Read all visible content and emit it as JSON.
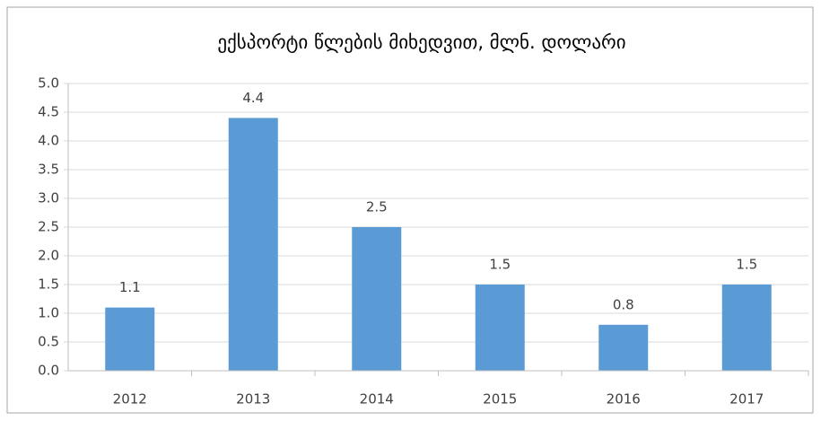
{
  "chart_data": {
    "type": "bar",
    "title": "ექსპორტი წლების მიხედვით, მლნ. დოლარი",
    "categories": [
      "2012",
      "2013",
      "2014",
      "2015",
      "2016",
      "2017"
    ],
    "values": [
      1.1,
      4.4,
      2.5,
      1.5,
      0.8,
      1.5
    ],
    "color": "#5b9bd5",
    "ylim": [
      0,
      5
    ],
    "yticks": [
      {
        "value": 0,
        "label": "0.0"
      },
      0.5,
      {
        "value": 1,
        "label": "1.0"
      },
      1.5,
      {
        "value": 2,
        "label": "2.0"
      },
      2.5,
      {
        "value": 3,
        "label": "3.0"
      },
      3.5,
      {
        "value": 4,
        "label": "4.0"
      },
      4.5,
      {
        "value": 5,
        "label": "5.0"
      }
    ],
    "grid": true
  }
}
